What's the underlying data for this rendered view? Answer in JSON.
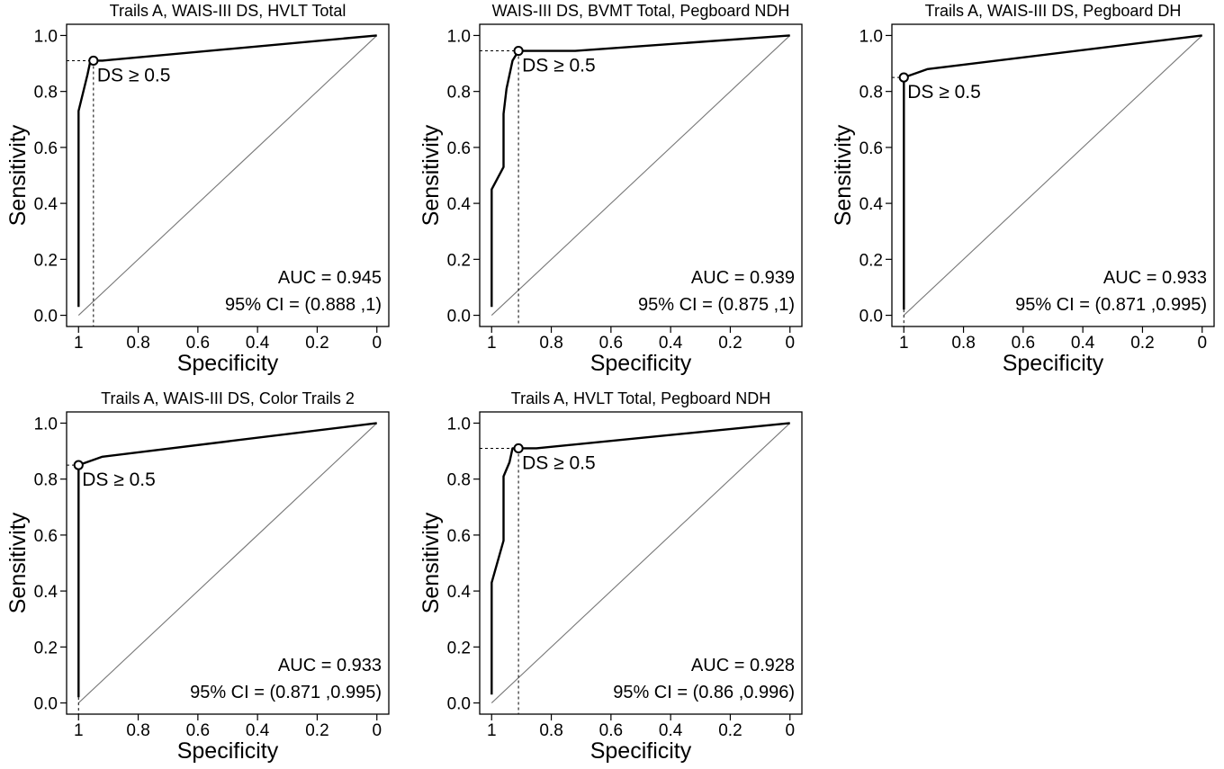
{
  "chart_data": [
    {
      "type": "line",
      "title": "Trails A, WAIS-III DS, HVLT Total",
      "xlabel": "Specificity",
      "ylabel": "Sensitivity",
      "xlim": [
        1,
        0
      ],
      "ylim": [
        0,
        1
      ],
      "xticks": [
        "1",
        "0.8",
        "0.6",
        "0.4",
        "0.2",
        "0"
      ],
      "yticks": [
        "0.0",
        "0.2",
        "0.4",
        "0.6",
        "0.8",
        "1.0"
      ],
      "grid": false,
      "series": [
        {
          "x": [
            1.0,
            1.0,
            0.97,
            0.96,
            0.95,
            0.92,
            0.0
          ],
          "y": [
            0.03,
            0.73,
            0.86,
            0.91,
            0.91,
            0.91,
            1.0
          ]
        }
      ],
      "threshold_point": {
        "specificity": 0.95,
        "sensitivity": 0.91,
        "label": "DS ≥ 0.5"
      },
      "auc_text": "AUC = 0.945",
      "ci_text": "95% CI = (0.888 ,1)"
    },
    {
      "type": "line",
      "title": "WAIS-III DS, BVMT Total, Pegboard NDH",
      "xlabel": "Specificity",
      "ylabel": "Sensitivity",
      "xlim": [
        1,
        0
      ],
      "ylim": [
        0,
        1
      ],
      "xticks": [
        "1",
        "0.8",
        "0.6",
        "0.4",
        "0.2",
        "0"
      ],
      "yticks": [
        "0.0",
        "0.2",
        "0.4",
        "0.6",
        "0.8",
        "1.0"
      ],
      "grid": false,
      "series": [
        {
          "x": [
            1.0,
            1.0,
            0.96,
            0.96,
            0.95,
            0.93,
            0.91,
            0.72,
            0.0
          ],
          "y": [
            0.03,
            0.45,
            0.53,
            0.72,
            0.81,
            0.91,
            0.945,
            0.945,
            1.0
          ]
        }
      ],
      "threshold_point": {
        "specificity": 0.91,
        "sensitivity": 0.945,
        "label": "DS ≥ 0.5"
      },
      "auc_text": "AUC = 0.939",
      "ci_text": "95% CI = (0.875 ,1)"
    },
    {
      "type": "line",
      "title": "Trails A, WAIS-III DS, Pegboard DH",
      "xlabel": "Specificity",
      "ylabel": "Sensitivity",
      "xlim": [
        1,
        0
      ],
      "ylim": [
        0,
        1
      ],
      "xticks": [
        "1",
        "0.8",
        "0.6",
        "0.4",
        "0.2",
        "0"
      ],
      "yticks": [
        "0.0",
        "0.2",
        "0.4",
        "0.6",
        "0.8",
        "1.0"
      ],
      "grid": false,
      "series": [
        {
          "x": [
            1.0,
            1.0,
            1.0,
            0.92,
            0.0
          ],
          "y": [
            0.02,
            0.6,
            0.85,
            0.88,
            1.0
          ]
        }
      ],
      "threshold_point": {
        "specificity": 1.0,
        "sensitivity": 0.85,
        "label": "DS ≥ 0.5"
      },
      "auc_text": "AUC = 0.933",
      "ci_text": "95% CI = (0.871 ,0.995)"
    },
    {
      "type": "line",
      "title": "Trails A, WAIS-III DS, Color Trails 2",
      "xlabel": "Specificity",
      "ylabel": "Sensitivity",
      "xlim": [
        1,
        0
      ],
      "ylim": [
        0,
        1
      ],
      "xticks": [
        "1",
        "0.8",
        "0.6",
        "0.4",
        "0.2",
        "0"
      ],
      "yticks": [
        "0.0",
        "0.2",
        "0.4",
        "0.6",
        "0.8",
        "1.0"
      ],
      "grid": false,
      "series": [
        {
          "x": [
            1.0,
            1.0,
            1.0,
            0.92,
            0.0
          ],
          "y": [
            0.02,
            0.6,
            0.85,
            0.88,
            1.0
          ]
        }
      ],
      "threshold_point": {
        "specificity": 1.0,
        "sensitivity": 0.85,
        "label": "DS ≥ 0.5"
      },
      "auc_text": "AUC = 0.933",
      "ci_text": "95% CI = (0.871 ,0.995)"
    },
    {
      "type": "line",
      "title": "Trails A, HVLT Total, Pegboard NDH",
      "xlabel": "Specificity",
      "ylabel": "Sensitivity",
      "xlim": [
        1,
        0
      ],
      "ylim": [
        0,
        1
      ],
      "xticks": [
        "1",
        "0.8",
        "0.6",
        "0.4",
        "0.2",
        "0"
      ],
      "yticks": [
        "0.0",
        "0.2",
        "0.4",
        "0.6",
        "0.8",
        "1.0"
      ],
      "grid": false,
      "series": [
        {
          "x": [
            1.0,
            1.0,
            0.96,
            0.96,
            0.94,
            0.93,
            0.91,
            0.85,
            0.0
          ],
          "y": [
            0.03,
            0.43,
            0.58,
            0.81,
            0.86,
            0.91,
            0.91,
            0.91,
            1.0
          ]
        }
      ],
      "threshold_point": {
        "specificity": 0.91,
        "sensitivity": 0.91,
        "label": "DS ≥ 0.5"
      },
      "auc_text": "AUC = 0.928",
      "ci_text": "95% CI = (0.86 ,0.996)"
    }
  ]
}
